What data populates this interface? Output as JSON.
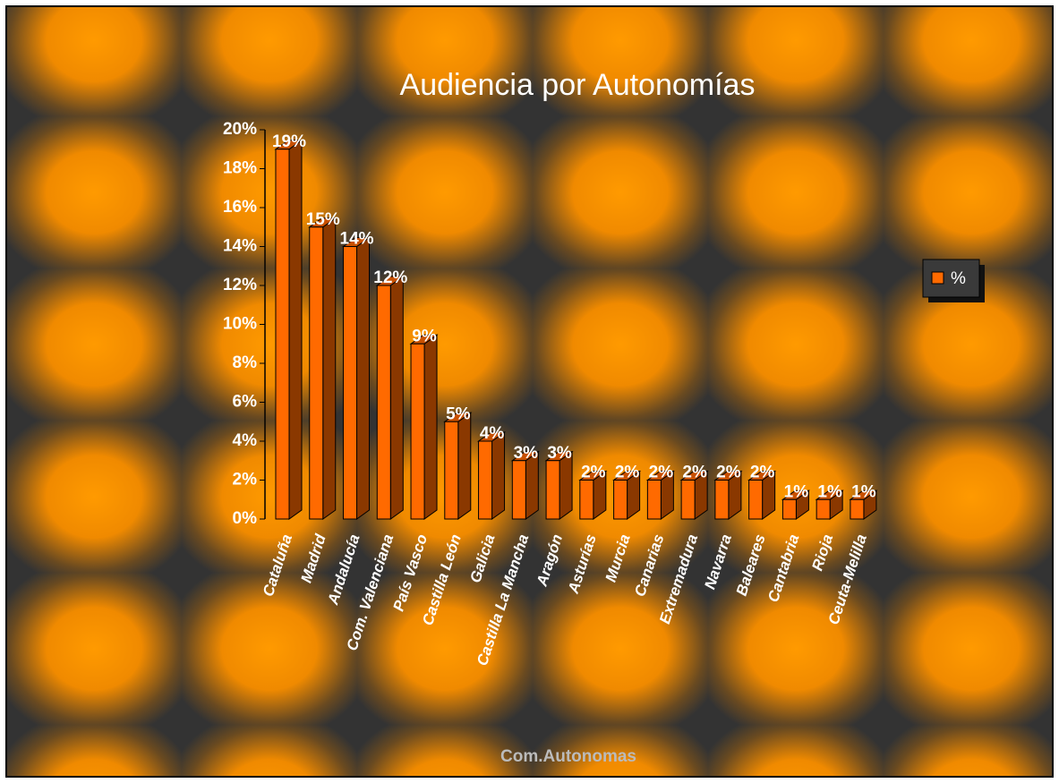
{
  "chart_data": {
    "type": "bar3d",
    "title": "Audiencia por Autonomías",
    "xlabel": "Com.Autonomas",
    "categories": [
      "Cataluña",
      "Madrid",
      "Andalucía",
      "Com. Valenciana",
      "País Vasco",
      "Castilla León",
      "Galicia",
      "Castilla La Mancha",
      "Aragón",
      "Asturías",
      "Murcia",
      "Canarias",
      "Extremadura",
      "Navarra",
      "Baleares",
      "Cantabria",
      "Rioja",
      "Ceuta-Melilla"
    ],
    "series": [
      {
        "name": "%",
        "color": "#ff6a00",
        "values": [
          19,
          15,
          14,
          12,
          9,
          5,
          4,
          3,
          3,
          2,
          2,
          2,
          2,
          2,
          2,
          1,
          1,
          1
        ],
        "value_labels": [
          "19%",
          "15%",
          "14%",
          "12%",
          "9%",
          "5%",
          "4%",
          "3%",
          "3%",
          "2%",
          "2%",
          "2%",
          "2%",
          "2%",
          "2%",
          "1%",
          "1%",
          "1%"
        ]
      }
    ],
    "ylim": [
      0,
      20
    ],
    "yticks": [
      {
        "value": 0,
        "label": "0%"
      },
      {
        "value": 2,
        "label": "2%"
      },
      {
        "value": 4,
        "label": "4%"
      },
      {
        "value": 6,
        "label": "6%"
      },
      {
        "value": 8,
        "label": "8%"
      },
      {
        "value": 10,
        "label": "10%"
      },
      {
        "value": 12,
        "label": "12%"
      },
      {
        "value": 14,
        "label": "14%"
      },
      {
        "value": 16,
        "label": "16%"
      },
      {
        "value": 18,
        "label": "18%"
      },
      {
        "value": 20,
        "label": "20%"
      }
    ],
    "legend": "right"
  }
}
